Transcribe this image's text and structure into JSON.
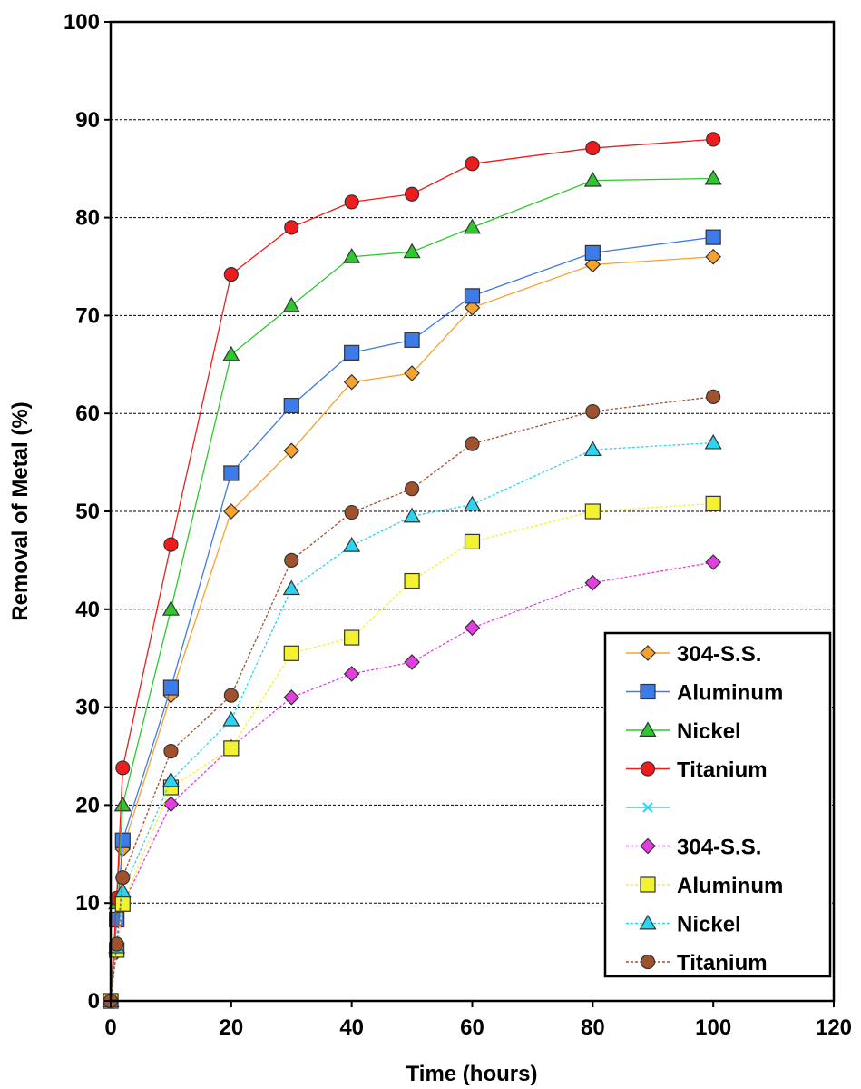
{
  "chart_data": {
    "type": "line",
    "title": "",
    "xlabel": "Time (hours)",
    "ylabel": "Removal of Metal (%)",
    "xlim": [
      0,
      120
    ],
    "ylim": [
      0,
      100
    ],
    "xticks": [
      "0",
      "20",
      "40",
      "60",
      "80",
      "100",
      "120"
    ],
    "yticks": [
      "0",
      "10",
      "20",
      "30",
      "40",
      "50",
      "60",
      "70",
      "80",
      "90",
      "100"
    ],
    "grid": "horizontal dashed",
    "legend_position": "bottom-right",
    "series": [
      {
        "name": "304-S.S.",
        "marker": "diamond",
        "color": "#f7a130",
        "line_style": "solid",
        "x": [
          0,
          1,
          2,
          10,
          20,
          30,
          40,
          50,
          60,
          80,
          100
        ],
        "y": [
          0,
          8.5,
          15.5,
          31.2,
          50,
          56.2,
          63.2,
          64.1,
          70.8,
          75.2,
          76
        ]
      },
      {
        "name": "Aluminum",
        "marker": "square",
        "color": "#3d7be8",
        "line_style": "solid",
        "x": [
          0,
          1,
          2,
          10,
          20,
          30,
          40,
          50,
          60,
          80,
          100
        ],
        "y": [
          0,
          8.3,
          16.4,
          32,
          53.9,
          60.8,
          66.2,
          67.5,
          72,
          76.4,
          78
        ]
      },
      {
        "name": "Nickel",
        "marker": "triangle",
        "color": "#2ec82e",
        "line_style": "solid",
        "x": [
          0,
          1,
          2,
          10,
          20,
          30,
          40,
          50,
          60,
          80,
          100
        ],
        "y": [
          0,
          10,
          20,
          40,
          66,
          71,
          76,
          76.5,
          79,
          83.8,
          84
        ]
      },
      {
        "name": "Titanium",
        "marker": "circle",
        "color": "#ee1c1c",
        "line_style": "solid",
        "x": [
          0,
          1,
          2,
          10,
          20,
          30,
          40,
          50,
          60,
          80,
          100
        ],
        "y": [
          0,
          10.5,
          23.8,
          46.6,
          74.2,
          79,
          81.6,
          82.4,
          85.5,
          87.1,
          88
        ]
      },
      {
        "name": "",
        "marker": "x",
        "color": "#2ad4f2",
        "line_style": "solid",
        "x": [],
        "y": []
      },
      {
        "name": "304-S.S.",
        "marker": "diamond",
        "color": "#e23ee2",
        "line_style": "dashed",
        "x": [
          0,
          1,
          2,
          10,
          20,
          30,
          40,
          50,
          60,
          80,
          100
        ],
        "y": [
          0,
          5,
          9.8,
          20.1,
          25.9,
          31,
          33.4,
          34.6,
          38.1,
          42.7,
          44.8
        ]
      },
      {
        "name": "Aluminum",
        "marker": "square",
        "color": "#f2f230",
        "line_style": "dashed",
        "x": [
          0,
          1,
          2,
          10,
          20,
          30,
          40,
          50,
          60,
          80,
          100
        ],
        "y": [
          0,
          5.2,
          9.9,
          21.8,
          25.8,
          35.5,
          37.1,
          42.9,
          46.9,
          50,
          50.8
        ]
      },
      {
        "name": "Nickel",
        "marker": "triangle",
        "color": "#2ad4f2",
        "line_style": "dashed",
        "x": [
          0,
          1,
          2,
          10,
          20,
          30,
          40,
          50,
          60,
          80,
          100
        ],
        "y": [
          0,
          5.5,
          11.2,
          22.5,
          28.7,
          42.1,
          46.5,
          49.5,
          50.7,
          56.3,
          57
        ]
      },
      {
        "name": "Titanium",
        "marker": "circle",
        "color": "#a0522d",
        "line_style": "dashed",
        "x": [
          0,
          1,
          2,
          10,
          20,
          30,
          40,
          50,
          60,
          80,
          100
        ],
        "y": [
          0,
          5.8,
          12.6,
          25.5,
          31.2,
          45,
          49.9,
          52.3,
          56.9,
          60.2,
          61.7
        ]
      }
    ]
  }
}
